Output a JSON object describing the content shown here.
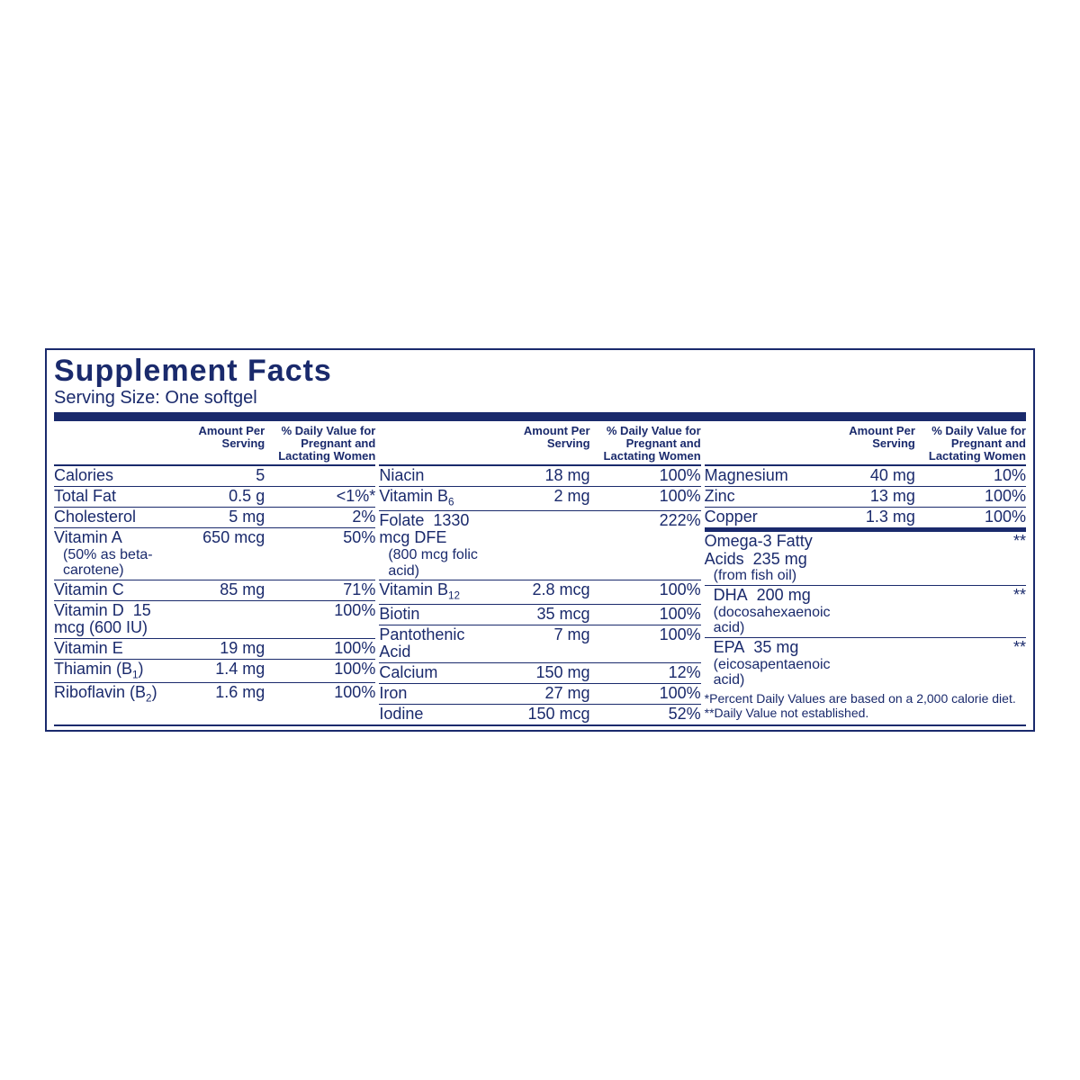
{
  "colors": {
    "primary": "#1a2a6c",
    "bg": "#ffffff"
  },
  "title": "Supplement Facts",
  "serving_label": "Serving Size: One softgel",
  "header_amount": "Amount Per Serving",
  "header_dv": "% Daily Value for Pregnant and Lactating Women",
  "col_a": [
    {
      "name": "Calories",
      "amt": "5",
      "dv": ""
    },
    {
      "name": "Total Fat",
      "amt": "0.5 g",
      "dv": "<1%*"
    },
    {
      "name": "Cholesterol",
      "amt": "5 mg",
      "dv": "2%"
    },
    {
      "name": "Vitamin A",
      "sub": "(50% as beta-carotene)",
      "amt": "650 mcg",
      "dv": "50%"
    },
    {
      "name": "Vitamin C",
      "amt": "85 mg",
      "dv": "71%"
    },
    {
      "name": "Vitamin D",
      "inline_amt": "15 mcg (600 IU)",
      "dv": "100%"
    },
    {
      "name": "Vitamin E",
      "amt": "19 mg",
      "dv": "100%"
    },
    {
      "name": "Thiamin (B",
      "subscript": "1",
      "name_suffix": ")",
      "amt": "1.4 mg",
      "dv": "100%"
    },
    {
      "name": "Riboflavin (B",
      "subscript": "2",
      "name_suffix": ")",
      "amt": "1.6 mg",
      "dv": "100%"
    }
  ],
  "col_b": [
    {
      "name": "Niacin",
      "amt": "18 mg",
      "dv": "100%"
    },
    {
      "name": "Vitamin B",
      "subscript": "6",
      "amt": "2 mg",
      "dv": "100%"
    },
    {
      "name": "Folate",
      "inline_amt": "1330 mcg DFE",
      "sub": "(800 mcg folic acid)",
      "dv": "222%"
    },
    {
      "name": "Vitamin B",
      "subscript": "12",
      "amt": "2.8 mcg",
      "dv": "100%"
    },
    {
      "name": "Biotin",
      "amt": "35 mcg",
      "dv": "100%"
    },
    {
      "name": "Pantothenic Acid",
      "amt": "7 mg",
      "dv": "100%"
    },
    {
      "name": "Calcium",
      "amt": "150 mg",
      "dv": "12%"
    },
    {
      "name": "Iron",
      "amt": "27 mg",
      "dv": "100%"
    },
    {
      "name": "Iodine",
      "amt": "150 mcg",
      "dv": "52%"
    }
  ],
  "col_c_top": [
    {
      "name": "Magnesium",
      "amt": "40 mg",
      "dv": "10%"
    },
    {
      "name": "Zinc",
      "amt": "13 mg",
      "dv": "100%"
    },
    {
      "name": "Copper",
      "amt": "1.3 mg",
      "dv": "100%",
      "thick_after": true
    }
  ],
  "col_c_bottom": [
    {
      "name": "Omega-3 Fatty Acids",
      "inline_amt": "235 mg",
      "sub": "(from fish oil)",
      "dv": "**"
    },
    {
      "name": "DHA",
      "indent": true,
      "inline_amt": "200 mg",
      "sub": "(docosahexaenoic acid)",
      "dv": "**"
    },
    {
      "name": "EPA",
      "indent": true,
      "inline_amt": "35 mg",
      "sub": "(eicosapentaenoic acid)",
      "dv": "**"
    }
  ],
  "footnote1": "*Percent Daily Values are based on a 2,000 calorie diet.",
  "footnote2": "**Daily Value not established."
}
